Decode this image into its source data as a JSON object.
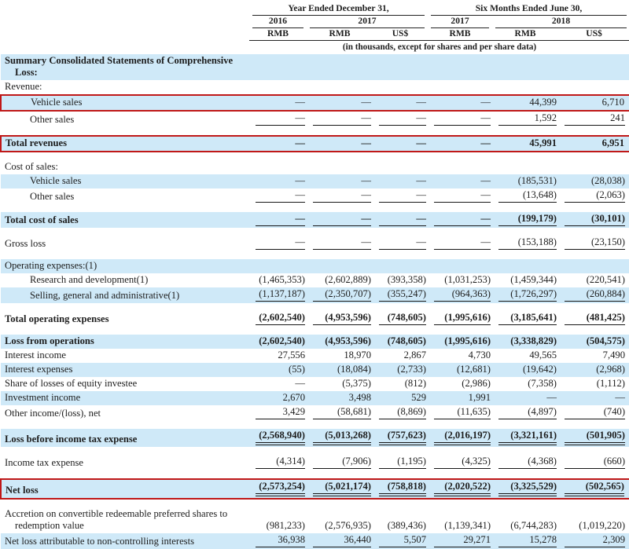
{
  "colors": {
    "row_highlight": "#cfe9f8",
    "annotation_box": "#c01818"
  },
  "table": {
    "header": {
      "group1": "Year Ended December 31,",
      "group2": "Six Months Ended June 30,",
      "years": [
        "2016",
        "2017",
        "2017",
        "2018"
      ],
      "units": [
        "RMB",
        "RMB",
        "US$",
        "RMB",
        "RMB",
        "US$"
      ],
      "note": "(in thousands, except for shares and per share data)"
    },
    "rows": [
      {
        "label": "Summary Consolidated Statements of Comprehensive",
        "label2": "Loss:",
        "bold": true,
        "blue": true,
        "box": false,
        "indent": 0,
        "rule": "none",
        "gap": false,
        "values": null
      },
      {
        "label": "Revenue:",
        "bold": false,
        "blue": false,
        "box": false,
        "indent": 0,
        "rule": "none",
        "gap": false,
        "values": null
      },
      {
        "label": "Vehicle sales",
        "bold": false,
        "blue": true,
        "box": true,
        "indent": 1,
        "rule": "none",
        "gap": false,
        "values": [
          "—",
          "—",
          "—",
          "—",
          "44,399",
          "6,710"
        ]
      },
      {
        "label": "Other sales",
        "bold": false,
        "blue": false,
        "box": false,
        "indent": 1,
        "rule": "single",
        "gap": false,
        "values": [
          "—",
          "—",
          "—",
          "—",
          "1,592",
          "241"
        ]
      },
      {
        "label": "Total revenues",
        "bold": true,
        "blue": true,
        "box": true,
        "indent": 0,
        "rule": "none",
        "gap": true,
        "values": [
          "—",
          "—",
          "—",
          "—",
          "45,991",
          "6,951"
        ]
      },
      {
        "label": "Cost of sales:",
        "bold": false,
        "blue": false,
        "box": false,
        "indent": 0,
        "rule": "none",
        "gap": true,
        "values": null
      },
      {
        "label": "Vehicle sales",
        "bold": false,
        "blue": true,
        "box": false,
        "indent": 1,
        "rule": "none",
        "gap": false,
        "values": [
          "—",
          "—",
          "—",
          "—",
          "(185,531)",
          "(28,038)"
        ]
      },
      {
        "label": "Other sales",
        "bold": false,
        "blue": false,
        "box": false,
        "indent": 1,
        "rule": "single",
        "gap": false,
        "values": [
          "—",
          "—",
          "—",
          "—",
          "(13,648)",
          "(2,063)"
        ]
      },
      {
        "label": "Total cost of sales",
        "bold": true,
        "blue": true,
        "box": false,
        "indent": 0,
        "rule": "single",
        "gap": true,
        "values": [
          "—",
          "—",
          "—",
          "—",
          "(199,179)",
          "(30,101)"
        ]
      },
      {
        "label": "Gross loss",
        "bold": false,
        "blue": false,
        "box": false,
        "indent": 0,
        "rule": "single",
        "gap": true,
        "values": [
          "—",
          "—",
          "—",
          "—",
          "(153,188)",
          "(23,150)"
        ]
      },
      {
        "label": "Operating expenses:(1)",
        "bold": false,
        "blue": true,
        "box": false,
        "indent": 0,
        "rule": "none",
        "gap": true,
        "values": null
      },
      {
        "label": "Research and development(1)",
        "bold": false,
        "blue": false,
        "box": false,
        "indent": 1,
        "rule": "none",
        "gap": false,
        "values": [
          "(1,465,353)",
          "(2,602,889)",
          "(393,358)",
          "(1,031,253)",
          "(1,459,344)",
          "(220,541)"
        ]
      },
      {
        "label": "Selling, general and administrative(1)",
        "bold": false,
        "blue": true,
        "box": false,
        "indent": 1,
        "rule": "single",
        "gap": false,
        "values": [
          "(1,137,187)",
          "(2,350,707)",
          "(355,247)",
          "(964,363)",
          "(1,726,297)",
          "(260,884)"
        ]
      },
      {
        "label": "Total operating expenses",
        "bold": true,
        "blue": false,
        "box": false,
        "indent": 0,
        "rule": "single",
        "gap": true,
        "values": [
          "(2,602,540)",
          "(4,953,596)",
          "(748,605)",
          "(1,995,616)",
          "(3,185,641)",
          "(481,425)"
        ]
      },
      {
        "label": "Loss from operations",
        "bold": true,
        "blue": true,
        "box": false,
        "indent": 0,
        "rule": "none",
        "gap": true,
        "values": [
          "(2,602,540)",
          "(4,953,596)",
          "(748,605)",
          "(1,995,616)",
          "(3,338,829)",
          "(504,575)"
        ]
      },
      {
        "label": "Interest income",
        "bold": false,
        "blue": false,
        "box": false,
        "indent": 0,
        "rule": "none",
        "gap": false,
        "values": [
          "27,556",
          "18,970",
          "2,867",
          "4,730",
          "49,565",
          "7,490"
        ]
      },
      {
        "label": "Interest expenses",
        "bold": false,
        "blue": true,
        "box": false,
        "indent": 0,
        "rule": "none",
        "gap": false,
        "values": [
          "(55)",
          "(18,084)",
          "(2,733)",
          "(12,681)",
          "(19,642)",
          "(2,968)"
        ]
      },
      {
        "label": "Share of losses of equity investee",
        "bold": false,
        "blue": false,
        "box": false,
        "indent": 0,
        "rule": "none",
        "gap": false,
        "values": [
          "—",
          "(5,375)",
          "(812)",
          "(2,986)",
          "(7,358)",
          "(1,112)"
        ]
      },
      {
        "label": "Investment income",
        "bold": false,
        "blue": true,
        "box": false,
        "indent": 0,
        "rule": "none",
        "gap": false,
        "values": [
          "2,670",
          "3,498",
          "529",
          "1,991",
          "—",
          "—"
        ]
      },
      {
        "label": "Other income/(loss), net",
        "bold": false,
        "blue": false,
        "box": false,
        "indent": 0,
        "rule": "single",
        "gap": false,
        "values": [
          "3,429",
          "(58,681)",
          "(8,869)",
          "(11,635)",
          "(4,897)",
          "(740)"
        ]
      },
      {
        "label": "Loss before income tax expense",
        "bold": true,
        "blue": true,
        "box": false,
        "indent": 0,
        "rule": "double",
        "gap": true,
        "values": [
          "(2,568,940)",
          "(5,013,268)",
          "(757,623)",
          "(2,016,197)",
          "(3,321,161)",
          "(501,905)"
        ]
      },
      {
        "label": "Income tax expense",
        "bold": false,
        "blue": false,
        "box": false,
        "indent": 0,
        "rule": "single",
        "gap": true,
        "values": [
          "(4,314)",
          "(7,906)",
          "(1,195)",
          "(4,325)",
          "(4,368)",
          "(660)"
        ]
      },
      {
        "label": "Net loss",
        "bold": true,
        "blue": true,
        "box": true,
        "indent": 0,
        "rule": "double",
        "gap": true,
        "values": [
          "(2,573,254)",
          "(5,021,174)",
          "(758,818)",
          "(2,020,522)",
          "(3,325,529)",
          "(502,565)"
        ]
      },
      {
        "label": "Accretion on convertible redeemable preferred shares to",
        "label2": "redemption value",
        "bold": false,
        "blue": false,
        "box": false,
        "indent": 0,
        "rule": "none",
        "gap": true,
        "values": [
          "(981,233)",
          "(2,576,935)",
          "(389,436)",
          "(1,139,341)",
          "(6,744,283)",
          "(1,019,220)"
        ]
      },
      {
        "label": "Net loss attributable to non-controlling interests",
        "bold": false,
        "blue": true,
        "box": false,
        "indent": 0,
        "rule": "single",
        "gap": false,
        "values": [
          "36,938",
          "36,440",
          "5,507",
          "29,271",
          "15,278",
          "2,309"
        ]
      }
    ]
  }
}
